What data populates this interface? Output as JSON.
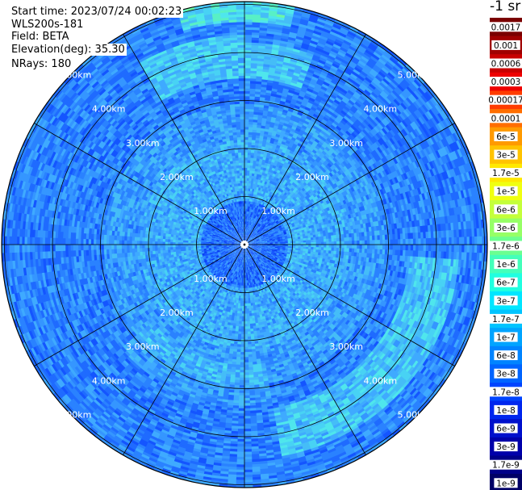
{
  "info": {
    "start_time": "Start time: 2023/07/24 00:02:23",
    "instrument": "WLS200s-181",
    "field": "Field: BETA",
    "elevation": "Elevation(deg): 35.30",
    "nrays": "NRays: 180"
  },
  "colorbar": {
    "unit": "-1 sr",
    "labels": [
      "0.0017",
      "0.001",
      "0.0006",
      "0.0003",
      "0.00017",
      "0.0001",
      "6e-5",
      "3e-5",
      "1.7e-5",
      "1e-5",
      "6e-6",
      "3e-6",
      "1.7e-6",
      "1e-6",
      "6e-7",
      "3e-7",
      "1.7e-7",
      "1e-7",
      "6e-8",
      "3e-8",
      "1.7e-8",
      "1e-8",
      "6e-9",
      "3e-9",
      "1.7e-9",
      "1e-9"
    ],
    "colors": [
      "#7a0000",
      "#a00000",
      "#c80000",
      "#ee0000",
      "#ff3c00",
      "#ff6e00",
      "#ff9a00",
      "#ffc300",
      "#ffe800",
      "#f0ff10",
      "#c4ff3a",
      "#96ff66",
      "#6cff90",
      "#44ffba",
      "#20ffe0",
      "#00e6ff",
      "#00c4ff",
      "#00a4ff",
      "#0084ff",
      "#0064ff",
      "#0044ff",
      "#0026ee",
      "#0010cc",
      "#0000aa",
      "#000088",
      "#000066"
    ]
  },
  "chart_data": {
    "type": "heatmap",
    "projection": "polar PPI scan",
    "range_rings_km": [
      1,
      2,
      3,
      4,
      5
    ],
    "ring_labels": [
      "1.00km",
      "2.00km",
      "3.00km",
      "4.00km",
      "5.00km"
    ],
    "nrays": 180,
    "field": "BETA",
    "color_scale": "log",
    "value_range": [
      "1e-9",
      "0.0017"
    ],
    "dominant_values": "near-field ~3e-8 (light blue), mid ring ~1e-7, outer ~3e-8 to 1e-8 (blue), bright arcs ~1e-7 to 3e-7 (cyan/green) at ~3.5–4.5 km"
  }
}
